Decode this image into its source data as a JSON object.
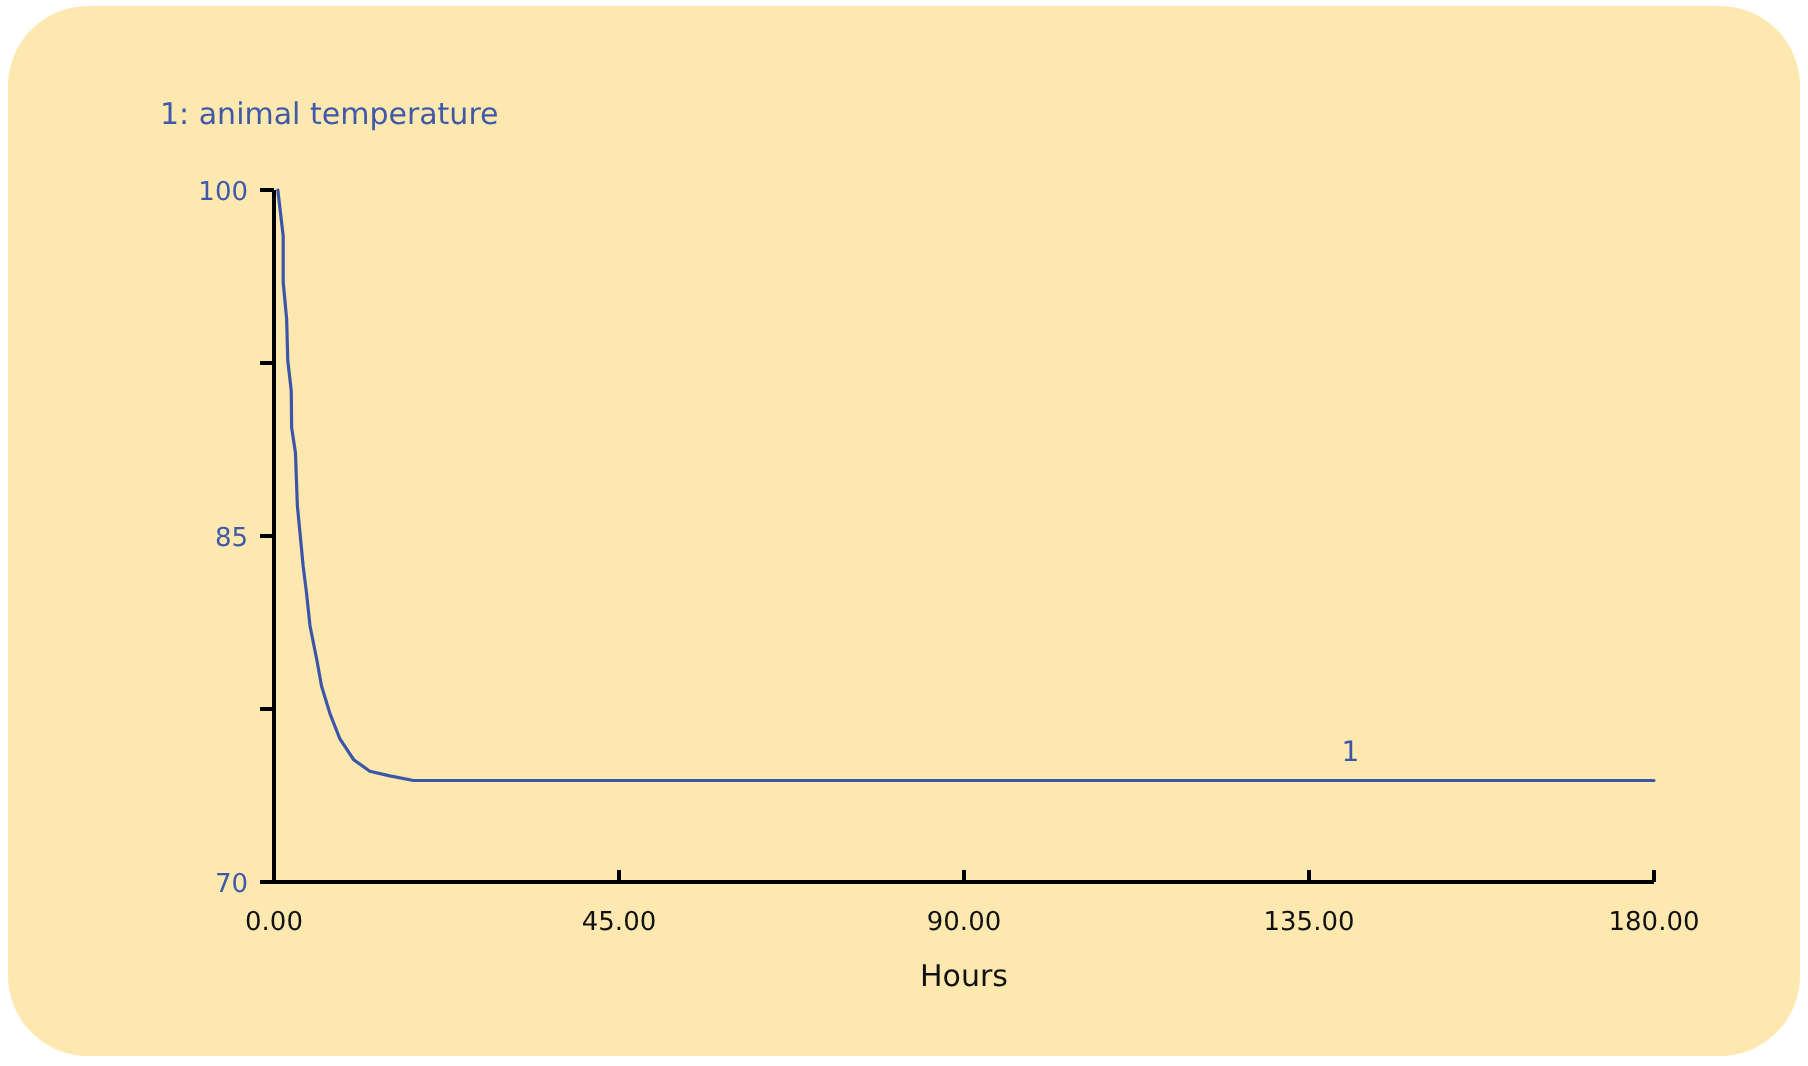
{
  "chart_data": {
    "type": "line",
    "title": "1: animal temperature",
    "xlabel": "Hours",
    "xlim": [
      0,
      180
    ],
    "xticks": [
      {
        "value": 0,
        "label": "0.00"
      },
      {
        "value": 45,
        "label": "45.00"
      },
      {
        "value": 90,
        "label": "90.00"
      },
      {
        "value": 135,
        "label": "135.00"
      },
      {
        "value": 180,
        "label": "180.00"
      }
    ],
    "ylim": [
      70,
      100
    ],
    "yticks": [
      70,
      {
        "value": 77.5,
        "label": null
      },
      85,
      {
        "value": 92.5,
        "label": null
      },
      100
    ],
    "grid": false,
    "series": [
      {
        "name": "1",
        "color": "#3b55a8",
        "x": [
          0.5,
          1.2,
          1.2,
          1.65,
          1.8,
          2.25,
          2.3,
          2.8,
          3.05,
          3.4,
          3.8,
          4.25,
          4.7,
          5.6,
          6.2,
          7.3,
          8.6,
          10.4,
          12.5,
          15.1,
          18.2,
          180
        ],
        "values": [
          100,
          98,
          96,
          94.4,
          92.6,
          91.3,
          89.7,
          88.6,
          86.3,
          85.1,
          83.7,
          82.5,
          81.1,
          79.6,
          78.5,
          77.3,
          76.2,
          75.3,
          74.8,
          74.6,
          74.4,
          74.4
        ]
      }
    ]
  }
}
